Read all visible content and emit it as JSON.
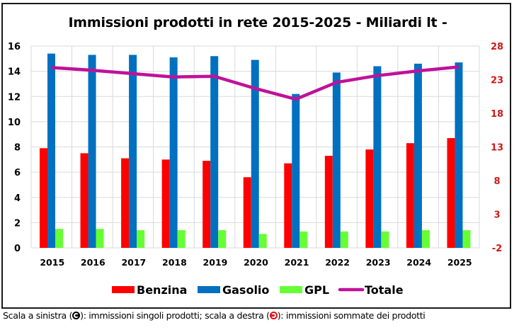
{
  "chart_data": {
    "type": "bar",
    "title": "Immissioni prodotti in rete 2015-2025 - Miliardi lt -",
    "categories": [
      "2015",
      "2016",
      "2017",
      "2018",
      "2019",
      "2020",
      "2021",
      "2022",
      "2023",
      "2024",
      "2025"
    ],
    "series": [
      {
        "name": "Benzina",
        "type": "bar",
        "axis": "left",
        "color": "#FF0000",
        "values": [
          7.9,
          7.5,
          7.1,
          7.0,
          6.9,
          5.6,
          6.7,
          7.3,
          7.8,
          8.3,
          8.7
        ]
      },
      {
        "name": "Gasolio",
        "type": "bar",
        "axis": "left",
        "color": "#0070C0",
        "values": [
          15.4,
          15.3,
          15.3,
          15.1,
          15.2,
          14.9,
          12.2,
          13.9,
          14.4,
          14.6,
          14.7
        ]
      },
      {
        "name": "GPL",
        "type": "bar",
        "axis": "left",
        "color": "#66FF33",
        "values": [
          1.5,
          1.5,
          1.4,
          1.4,
          1.4,
          1.1,
          1.3,
          1.3,
          1.3,
          1.4,
          1.4
        ]
      },
      {
        "name": "Totale",
        "type": "line",
        "axis": "right",
        "color": "#C0119A",
        "values": [
          24.8,
          24.4,
          23.9,
          23.4,
          23.5,
          21.7,
          20.1,
          22.6,
          23.6,
          24.3,
          24.9
        ]
      }
    ],
    "y_left": {
      "label": "",
      "range": [
        0,
        16
      ],
      "ticks": [
        "0",
        "2",
        "4",
        "6",
        "8",
        "10",
        "12",
        "14",
        "16"
      ],
      "color": "#000000"
    },
    "y_right": {
      "label": "",
      "range": [
        -2,
        28
      ],
      "ticks": [
        "-2",
        "3",
        "8",
        "13",
        "18",
        "23",
        "28"
      ],
      "color": "#D01818"
    },
    "xlabel": "",
    "grid": true,
    "legend": {
      "position": "bottom",
      "entries": [
        "Benzina",
        "Gasolio",
        "GPL",
        "Totale"
      ]
    }
  },
  "caption": {
    "part1": "Scala a sinistra (",
    "icon_left": "left-arrow-circle-icon",
    "part2": "): immissioni singoli prodotti; scala a destra (",
    "icon_right": "right-arrow-circle-icon",
    "part3": "): immissioni sommate dei prodotti"
  }
}
